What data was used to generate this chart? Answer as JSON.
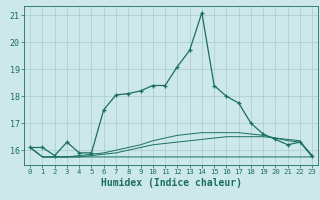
{
  "title": "",
  "xlabel": "Humidex (Indice chaleur)",
  "bg_color": "#cce8e8",
  "grid_color": "#aacccc",
  "line_color": "#1a6e62",
  "xlim": [
    -0.5,
    23.5
  ],
  "ylim": [
    15.45,
    21.35
  ],
  "yticks": [
    16,
    17,
    18,
    19,
    20,
    21
  ],
  "xticks": [
    0,
    1,
    2,
    3,
    4,
    5,
    6,
    7,
    8,
    9,
    10,
    11,
    12,
    13,
    14,
    15,
    16,
    17,
    18,
    19,
    20,
    21,
    22,
    23
  ],
  "series": [
    [
      16.1,
      16.1,
      15.8,
      16.3,
      15.9,
      15.9,
      17.5,
      18.05,
      18.1,
      18.2,
      18.4,
      18.4,
      19.1,
      19.7,
      21.1,
      18.4,
      18.0,
      17.75,
      17.0,
      16.6,
      16.4,
      16.2,
      16.3,
      15.8
    ],
    [
      16.1,
      15.75,
      15.75,
      15.75,
      15.75,
      15.75,
      15.75,
      15.75,
      15.75,
      15.75,
      15.75,
      15.75,
      15.75,
      15.75,
      15.75,
      15.75,
      15.75,
      15.75,
      15.75,
      15.75,
      15.75,
      15.75,
      15.75,
      15.75
    ],
    [
      16.1,
      15.75,
      15.75,
      15.75,
      15.75,
      15.8,
      15.85,
      15.9,
      16.0,
      16.1,
      16.2,
      16.25,
      16.3,
      16.35,
      16.4,
      16.45,
      16.5,
      16.5,
      16.5,
      16.5,
      16.45,
      16.4,
      16.35,
      15.75
    ],
    [
      16.1,
      15.75,
      15.75,
      15.75,
      15.8,
      15.85,
      15.9,
      16.0,
      16.1,
      16.2,
      16.35,
      16.45,
      16.55,
      16.6,
      16.65,
      16.65,
      16.65,
      16.65,
      16.6,
      16.55,
      16.45,
      16.35,
      16.3,
      15.75
    ]
  ]
}
